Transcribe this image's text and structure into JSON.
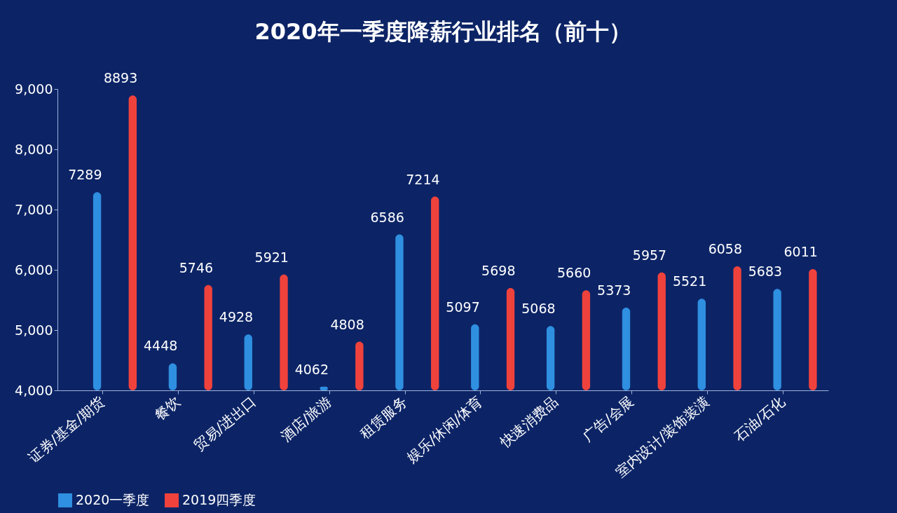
{
  "chart_data": {
    "type": "bar",
    "title": "2020年一季度降薪行业排名（前十）",
    "categories": [
      "证券/基金/期货",
      "餐饮",
      "贸易/进出口",
      "酒店/旅游",
      "租赁服务",
      "娱乐/休闲/体育",
      "快速消费品",
      "广告/会展",
      "室内设计/装饰装潢",
      "石油/石化"
    ],
    "series": [
      {
        "name": "2020一季度",
        "color": "#2f8fe0",
        "values": [
          7289,
          4448,
          4928,
          4062,
          6586,
          5097,
          5068,
          5373,
          5521,
          5683
        ]
      },
      {
        "name": "2019四季度",
        "color": "#f0423c",
        "values": [
          8893,
          5746,
          5921,
          4808,
          7214,
          5698,
          5660,
          5957,
          6058,
          6011
        ]
      }
    ],
    "ylim": [
      4000,
      9000
    ],
    "yticks": [
      {
        "value": 4000,
        "label": "4,000"
      },
      {
        "value": 5000,
        "label": "5,000"
      },
      {
        "value": 6000,
        "label": "6,000"
      },
      {
        "value": 7000,
        "label": "7,000"
      },
      {
        "value": 8000,
        "label": "8,000"
      },
      {
        "value": 9000,
        "label": "9,000"
      }
    ],
    "data_labels": true,
    "grid": false,
    "legend": "bottom"
  }
}
